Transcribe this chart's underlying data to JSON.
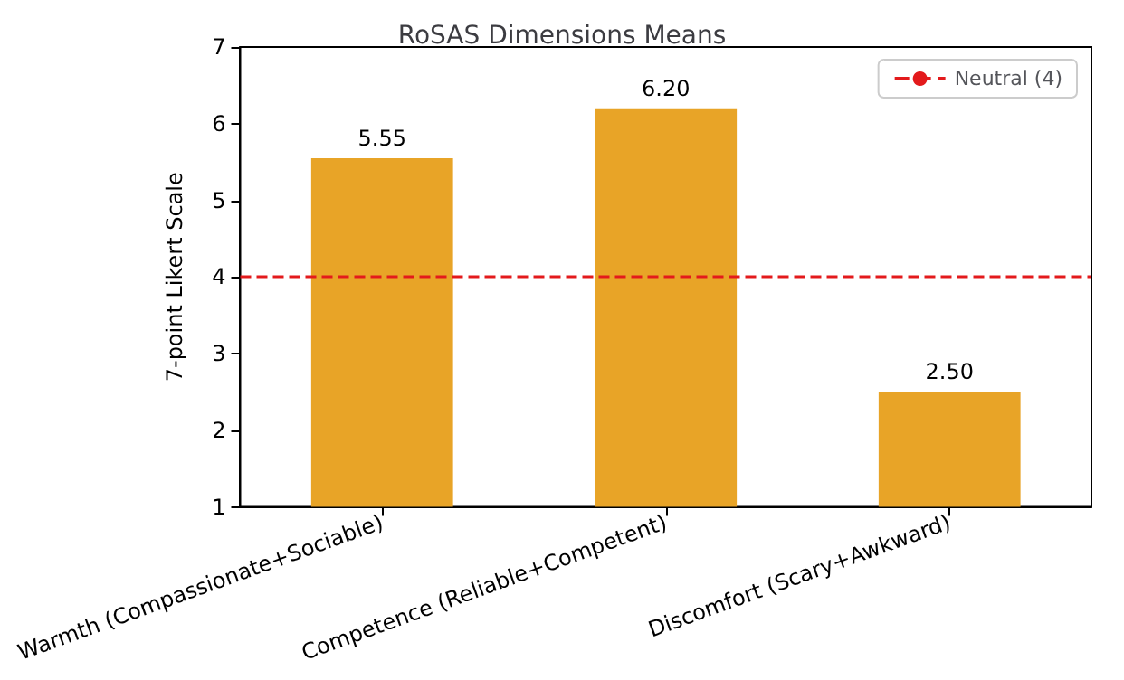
{
  "chart_data": {
    "type": "bar",
    "title": "RoSAS Dimensions Means",
    "ylabel": "7-point Likert Scale",
    "categories": [
      "Warmth (Compassionate+Sociable)",
      "Competence (Reliable+Competent)",
      "Discomfort (Scary+Awkward)"
    ],
    "values": [
      5.55,
      6.2,
      2.5
    ],
    "color": "#e8a427",
    "value_labels": [
      "5.55",
      "6.20",
      "2.50"
    ],
    "ylim": [
      1,
      7
    ],
    "yticks": [
      1,
      2,
      3,
      4,
      5,
      6,
      7
    ],
    "grid": false,
    "legend": "top right",
    "ref_lines": [
      {
        "axis": "y",
        "value": 4,
        "label": "Neutral (4)",
        "color": "#e31a1c",
        "line_style": "dashed"
      }
    ]
  }
}
